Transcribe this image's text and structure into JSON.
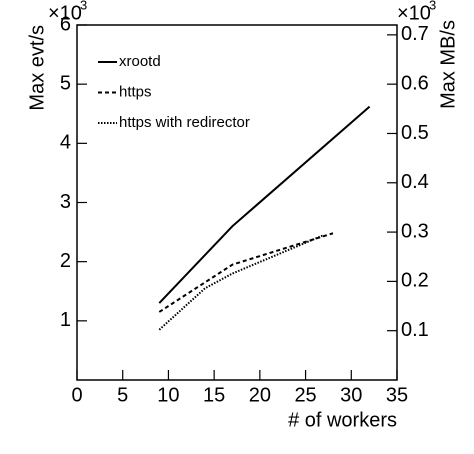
{
  "chart_data": {
    "type": "line",
    "x_label": "# of workers",
    "y_label": "Max evt/s",
    "y2_label": "Max MB/s",
    "y_multiplier": "×10",
    "y_exponent": "3",
    "y2_multiplier": "×10",
    "y2_exponent": "3",
    "xlim": [
      0,
      35
    ],
    "xticks": [
      0,
      5,
      10,
      15,
      20,
      25,
      30,
      35
    ],
    "ylim": [
      0,
      6
    ],
    "yticks": [
      1,
      2,
      3,
      4,
      5,
      6
    ],
    "y2lim": [
      0,
      0.72
    ],
    "y2ticks": [
      0.1,
      0.2,
      0.3,
      0.4,
      0.5,
      0.6,
      0.7
    ],
    "legend": "top-left",
    "series": [
      {
        "name": "xrootd",
        "color": "#000000",
        "dash": "none",
        "x": [
          9,
          17,
          32
        ],
        "values": [
          1.3,
          2.6,
          4.62
        ]
      },
      {
        "name": "https",
        "color": "#000000",
        "dash": "4,3",
        "x": [
          9,
          14,
          17,
          28
        ],
        "values": [
          1.15,
          1.65,
          1.95,
          2.48
        ]
      },
      {
        "name": "https with redirector",
        "color": "#000000",
        "dash": "1.5,1.5",
        "x": [
          9,
          14,
          17,
          27
        ],
        "values": [
          0.85,
          1.55,
          1.8,
          2.45
        ]
      }
    ]
  }
}
